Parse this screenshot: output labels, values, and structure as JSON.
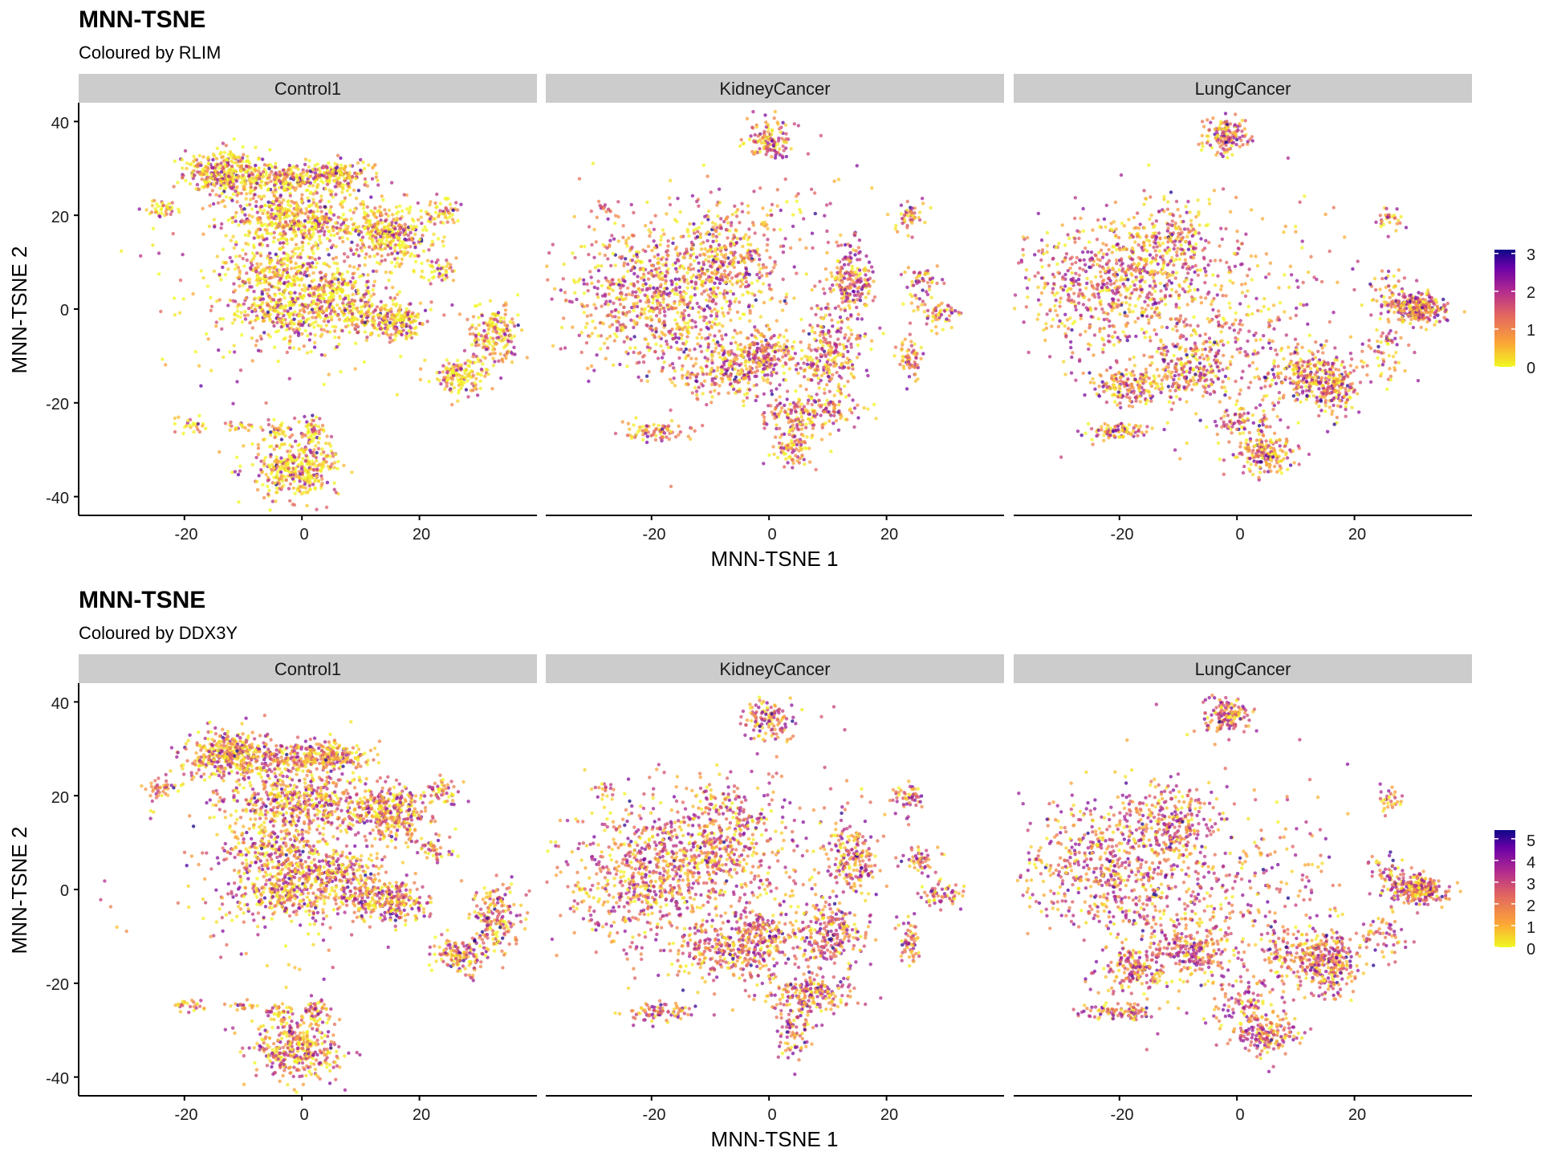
{
  "chart_data": [
    {
      "type": "scatter",
      "title": "MNN-TSNE",
      "subtitle": "Coloured by RLIM",
      "xlabel": "MNN-TSNE 1",
      "ylabel": "MNN-TSNE 2",
      "xlim": [
        -38,
        40
      ],
      "ylim": [
        -44,
        44
      ],
      "x_ticks": [
        -20,
        0,
        20
      ],
      "x_tick_labels": [
        "-20",
        "0",
        "20"
      ],
      "y_ticks": [
        40,
        20,
        0,
        -20,
        -40
      ],
      "y_tick_labels": [
        "40",
        "20",
        "0",
        "-20",
        "-40"
      ],
      "facets": [
        "Control1",
        "KidneyCancer",
        "LungCancer"
      ],
      "color_scale": {
        "palette": "plasma",
        "colors": [
          "#f0f921",
          "#fca636",
          "#e16462",
          "#b12a90",
          "#6a00a8",
          "#0d0887"
        ],
        "min": 0,
        "max": 3.1,
        "ticks": [
          0,
          1,
          2,
          3
        ],
        "tick_labels": [
          "0",
          "1",
          "2",
          "3"
        ]
      },
      "grid": false,
      "legend": "right"
    },
    {
      "type": "scatter",
      "title": "MNN-TSNE",
      "subtitle": "Coloured by DDX3Y",
      "xlabel": "MNN-TSNE 1",
      "ylabel": "MNN-TSNE 2",
      "xlim": [
        -38,
        40
      ],
      "ylim": [
        -44,
        44
      ],
      "x_ticks": [
        -20,
        0,
        20
      ],
      "x_tick_labels": [
        "-20",
        "0",
        "20"
      ],
      "y_ticks": [
        40,
        20,
        0,
        -20,
        -40
      ],
      "y_tick_labels": [
        "40",
        "20",
        "0",
        "-20",
        "-40"
      ],
      "facets": [
        "Control1",
        "KidneyCancer",
        "LungCancer"
      ],
      "color_scale": {
        "palette": "plasma",
        "colors": [
          "#f0f921",
          "#fca636",
          "#e16462",
          "#b12a90",
          "#6a00a8",
          "#0d0887"
        ],
        "min": 0,
        "max": 5.4,
        "ticks": [
          0,
          1,
          2,
          3,
          4,
          5
        ],
        "tick_labels": [
          "0",
          "1",
          "2",
          "3",
          "4",
          "5"
        ]
      },
      "grid": false,
      "legend": "right"
    }
  ]
}
